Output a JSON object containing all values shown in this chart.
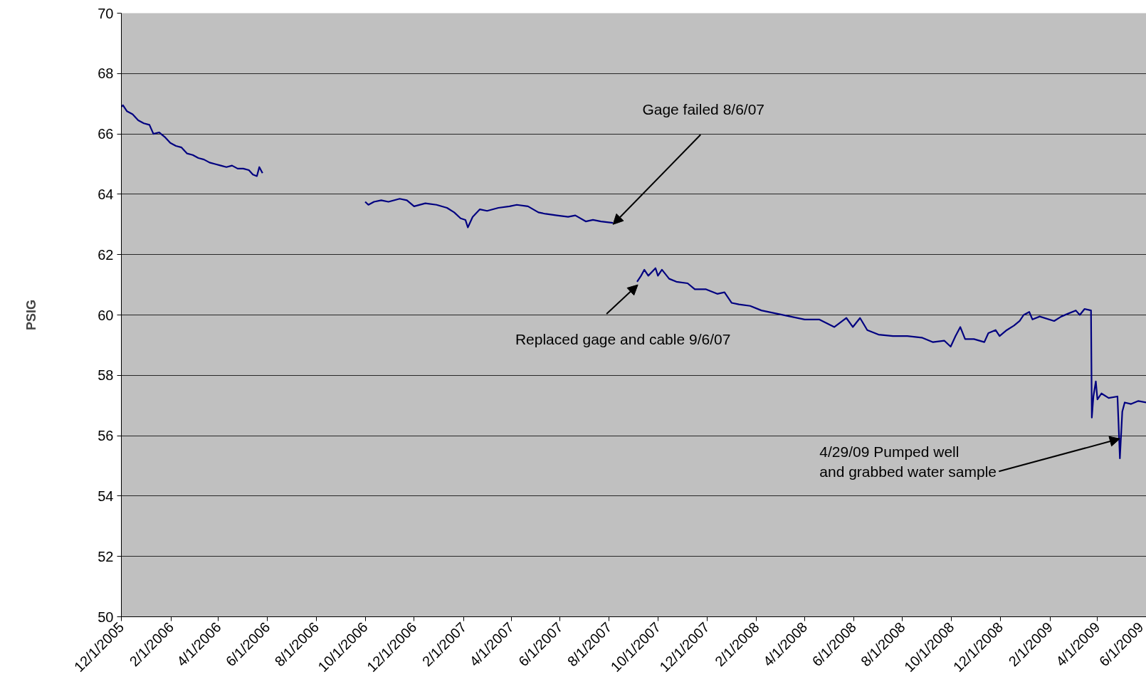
{
  "chart_data": {
    "type": "line",
    "ylabel": "PSIG",
    "x": [
      "2005-12-01",
      "2005-12-03",
      "2005-12-08",
      "2005-12-15",
      "2005-12-22",
      "2005-12-29",
      "2006-01-05",
      "2006-01-10",
      "2006-01-17",
      "2006-01-24",
      "2006-01-31",
      "2006-02-07",
      "2006-02-14",
      "2006-02-21",
      "2006-02-28",
      "2006-03-07",
      "2006-03-14",
      "2006-03-21",
      "2006-03-28",
      "2006-04-04",
      "2006-04-11",
      "2006-04-18",
      "2006-04-25",
      "2006-05-02",
      "2006-05-09",
      "2006-05-14",
      "2006-05-19",
      "2006-05-22",
      "2006-05-26",
      "2006-08-01",
      "2006-10-01",
      "2006-10-05",
      "2006-10-12",
      "2006-10-21",
      "2006-10-30",
      "2006-11-13",
      "2006-11-22",
      "2006-12-01",
      "2006-12-15",
      "2006-12-29",
      "2007-01-11",
      "2007-01-20",
      "2007-01-28",
      "2007-02-03",
      "2007-02-06",
      "2007-02-12",
      "2007-02-21",
      "2007-03-02",
      "2007-03-16",
      "2007-03-30",
      "2007-04-08",
      "2007-04-22",
      "2007-05-05",
      "2007-05-14",
      "2007-05-28",
      "2007-06-11",
      "2007-06-20",
      "2007-07-03",
      "2007-07-12",
      "2007-07-22",
      "2007-08-06",
      "2007-08-20",
      "2007-09-05",
      "2007-09-10",
      "2007-09-14",
      "2007-09-19",
      "2007-09-28",
      "2007-10-01",
      "2007-10-06",
      "2007-10-15",
      "2007-10-24",
      "2007-11-07",
      "2007-11-16",
      "2007-11-30",
      "2007-12-14",
      "2007-12-23",
      "2008-01-01",
      "2008-01-10",
      "2008-01-24",
      "2008-02-07",
      "2008-02-25",
      "2008-03-14",
      "2008-04-01",
      "2008-04-19",
      "2008-05-08",
      "2008-05-23",
      "2008-05-31",
      "2008-06-09",
      "2008-06-18",
      "2008-07-02",
      "2008-07-20",
      "2008-08-07",
      "2008-08-25",
      "2008-09-08",
      "2008-09-22",
      "2008-09-30",
      "2008-10-06",
      "2008-10-12",
      "2008-10-18",
      "2008-10-29",
      "2008-11-11",
      "2008-11-16",
      "2008-11-25",
      "2008-11-30",
      "2008-12-09",
      "2008-12-18",
      "2008-12-25",
      "2008-12-30",
      "2009-01-06",
      "2009-01-10",
      "2009-01-19",
      "2009-02-06",
      "2009-02-15",
      "2009-02-24",
      "2009-03-05",
      "2009-03-10",
      "2009-03-16",
      "2009-03-24",
      "2009-03-25",
      "2009-03-27",
      "2009-03-30",
      "2009-04-01",
      "2009-04-06",
      "2009-04-15",
      "2009-04-26",
      "2009-04-29",
      "2009-05-02",
      "2009-05-05",
      "2009-05-13",
      "2009-05-22",
      "2009-06-01"
    ],
    "series": [
      {
        "color": "#000080",
        "values": [
          66.9,
          66.95,
          66.75,
          66.65,
          66.45,
          66.35,
          66.3,
          66.0,
          66.05,
          65.9,
          65.7,
          65.6,
          65.55,
          65.35,
          65.3,
          65.2,
          65.15,
          65.05,
          65.0,
          64.95,
          64.9,
          64.95,
          64.85,
          64.85,
          64.8,
          64.65,
          64.6,
          64.9,
          64.7,
          null,
          63.75,
          63.65,
          63.75,
          63.8,
          63.75,
          63.85,
          63.8,
          63.6,
          63.7,
          63.65,
          63.55,
          63.4,
          63.2,
          63.15,
          62.9,
          63.25,
          63.5,
          63.45,
          63.55,
          63.6,
          63.65,
          63.6,
          63.4,
          63.35,
          63.3,
          63.25,
          63.3,
          63.1,
          63.15,
          63.1,
          63.05,
          null,
          61.1,
          61.3,
          61.5,
          61.3,
          61.55,
          61.3,
          61.5,
          61.2,
          61.1,
          61.05,
          60.85,
          60.85,
          60.7,
          60.75,
          60.4,
          60.35,
          60.3,
          60.15,
          60.05,
          59.95,
          59.85,
          59.85,
          59.6,
          59.9,
          59.6,
          59.9,
          59.5,
          59.35,
          59.3,
          59.3,
          59.25,
          59.1,
          59.15,
          58.95,
          59.3,
          59.6,
          59.2,
          59.2,
          59.1,
          59.4,
          59.5,
          59.3,
          59.5,
          59.65,
          59.8,
          60.0,
          60.1,
          59.85,
          59.95,
          59.8,
          59.95,
          60.05,
          60.15,
          60.0,
          60.2,
          60.15,
          56.6,
          57.3,
          57.8,
          57.2,
          57.4,
          57.25,
          57.3,
          55.25,
          56.8,
          57.1,
          57.05,
          57.15,
          57.1
        ]
      }
    ],
    "xlim": [
      "2005-12-01",
      "2009-06-01"
    ],
    "xticks": [
      {
        "value": "2005-12-01",
        "label": "12/1/2005"
      },
      {
        "value": "2006-02-01",
        "label": "2/1/2006"
      },
      {
        "value": "2006-04-01",
        "label": "4/1/2006"
      },
      {
        "value": "2006-06-01",
        "label": "6/1/2006"
      },
      {
        "value": "2006-08-01",
        "label": "8/1/2006"
      },
      {
        "value": "2006-10-01",
        "label": "10/1/2006"
      },
      {
        "value": "2006-12-01",
        "label": "12/1/2006"
      },
      {
        "value": "2007-02-01",
        "label": "2/1/2007"
      },
      {
        "value": "2007-04-01",
        "label": "4/1/2007"
      },
      {
        "value": "2007-06-01",
        "label": "6/1/2007"
      },
      {
        "value": "2007-08-01",
        "label": "8/1/2007"
      },
      {
        "value": "2007-10-01",
        "label": "10/1/2007"
      },
      {
        "value": "2007-12-01",
        "label": "12/1/2007"
      },
      {
        "value": "2008-02-01",
        "label": "2/1/2008"
      },
      {
        "value": "2008-04-01",
        "label": "4/1/2008"
      },
      {
        "value": "2008-06-01",
        "label": "6/1/2008"
      },
      {
        "value": "2008-08-01",
        "label": "8/1/2008"
      },
      {
        "value": "2008-10-01",
        "label": "10/1/2008"
      },
      {
        "value": "2008-12-01",
        "label": "12/1/2008"
      },
      {
        "value": "2009-02-01",
        "label": "2/1/2009"
      },
      {
        "value": "2009-04-01",
        "label": "4/1/2009"
      },
      {
        "value": "2009-06-01",
        "label": "6/1/2009"
      }
    ],
    "ylim": [
      50,
      70
    ],
    "yticks": [
      50,
      52,
      54,
      56,
      58,
      60,
      62,
      64,
      66,
      68,
      70
    ],
    "grid": "y",
    "marker": "none",
    "line_style": "solid",
    "annotations": [
      {
        "text": "Gage failed 8/6/07",
        "x": "2007-08-06",
        "y": 63.0
      },
      {
        "text": "Replaced gage and cable 9/6/07",
        "x": "2007-09-06",
        "y": 61.0
      },
      {
        "text": "4/29/09 Pumped well\nand grabbed water sample",
        "x": "2009-04-29",
        "y": 55.9
      }
    ]
  }
}
